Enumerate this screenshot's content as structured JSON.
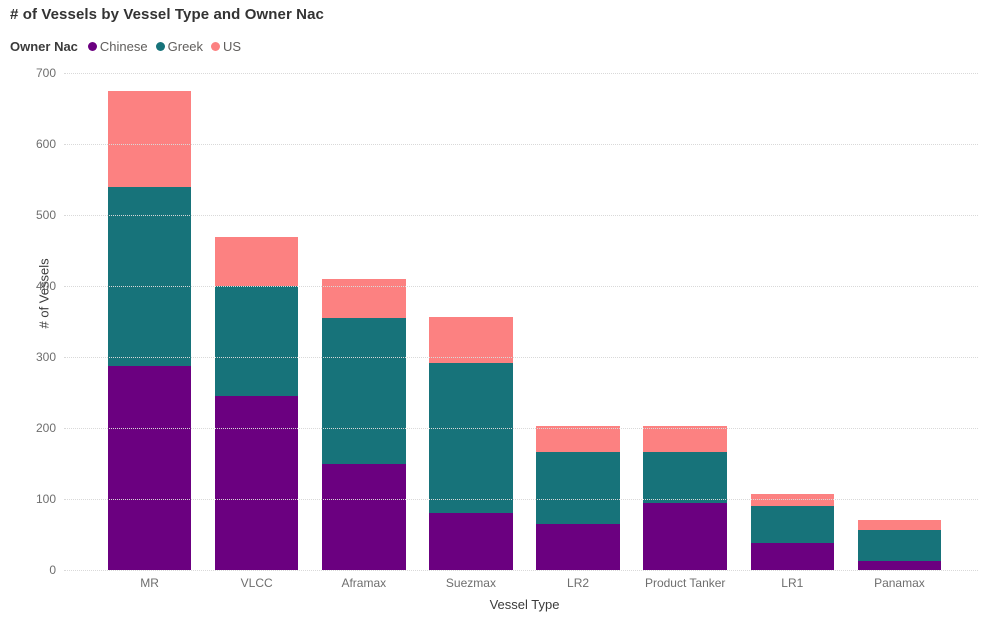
{
  "title": "# of Vessels by Vessel Type and Owner Nac",
  "legend": {
    "title": "Owner Nac",
    "items": [
      {
        "label": "Chinese",
        "color": "#6B0080"
      },
      {
        "label": "Greek",
        "color": "#17737A"
      },
      {
        "label": "US",
        "color": "#FC8181"
      }
    ]
  },
  "axes": {
    "x_title": "Vessel Type",
    "y_title": "# of Vessels"
  },
  "chart_data": {
    "type": "bar",
    "stacked": true,
    "title": "# of Vessels by Vessel Type and Owner Nac",
    "xlabel": "Vessel Type",
    "ylabel": "# of Vessels",
    "ylim": [
      0,
      700
    ],
    "ytick_interval": 100,
    "ytick_labels": [
      "0",
      "100",
      "200",
      "300",
      "400",
      "500",
      "600",
      "700"
    ],
    "grid": "horizontal-dotted",
    "legend_position": "top-left",
    "categories": [
      "MR",
      "VLCC",
      "Aframax",
      "Suezmax",
      "LR2",
      "Product Tanker",
      "LR1",
      "Panamax"
    ],
    "series": [
      {
        "name": "Chinese",
        "color": "#6B0080",
        "values": [
          287,
          245,
          150,
          80,
          65,
          95,
          38,
          13
        ]
      },
      {
        "name": "Greek",
        "color": "#17737A",
        "values": [
          253,
          155,
          205,
          211,
          101,
          71,
          52,
          44
        ]
      },
      {
        "name": "US",
        "color": "#FC8181",
        "values": [
          135,
          69,
          55,
          65,
          37,
          37,
          17,
          13
        ]
      }
    ],
    "stack_totals": [
      675,
      469,
      410,
      356,
      203,
      203,
      107,
      70
    ]
  }
}
